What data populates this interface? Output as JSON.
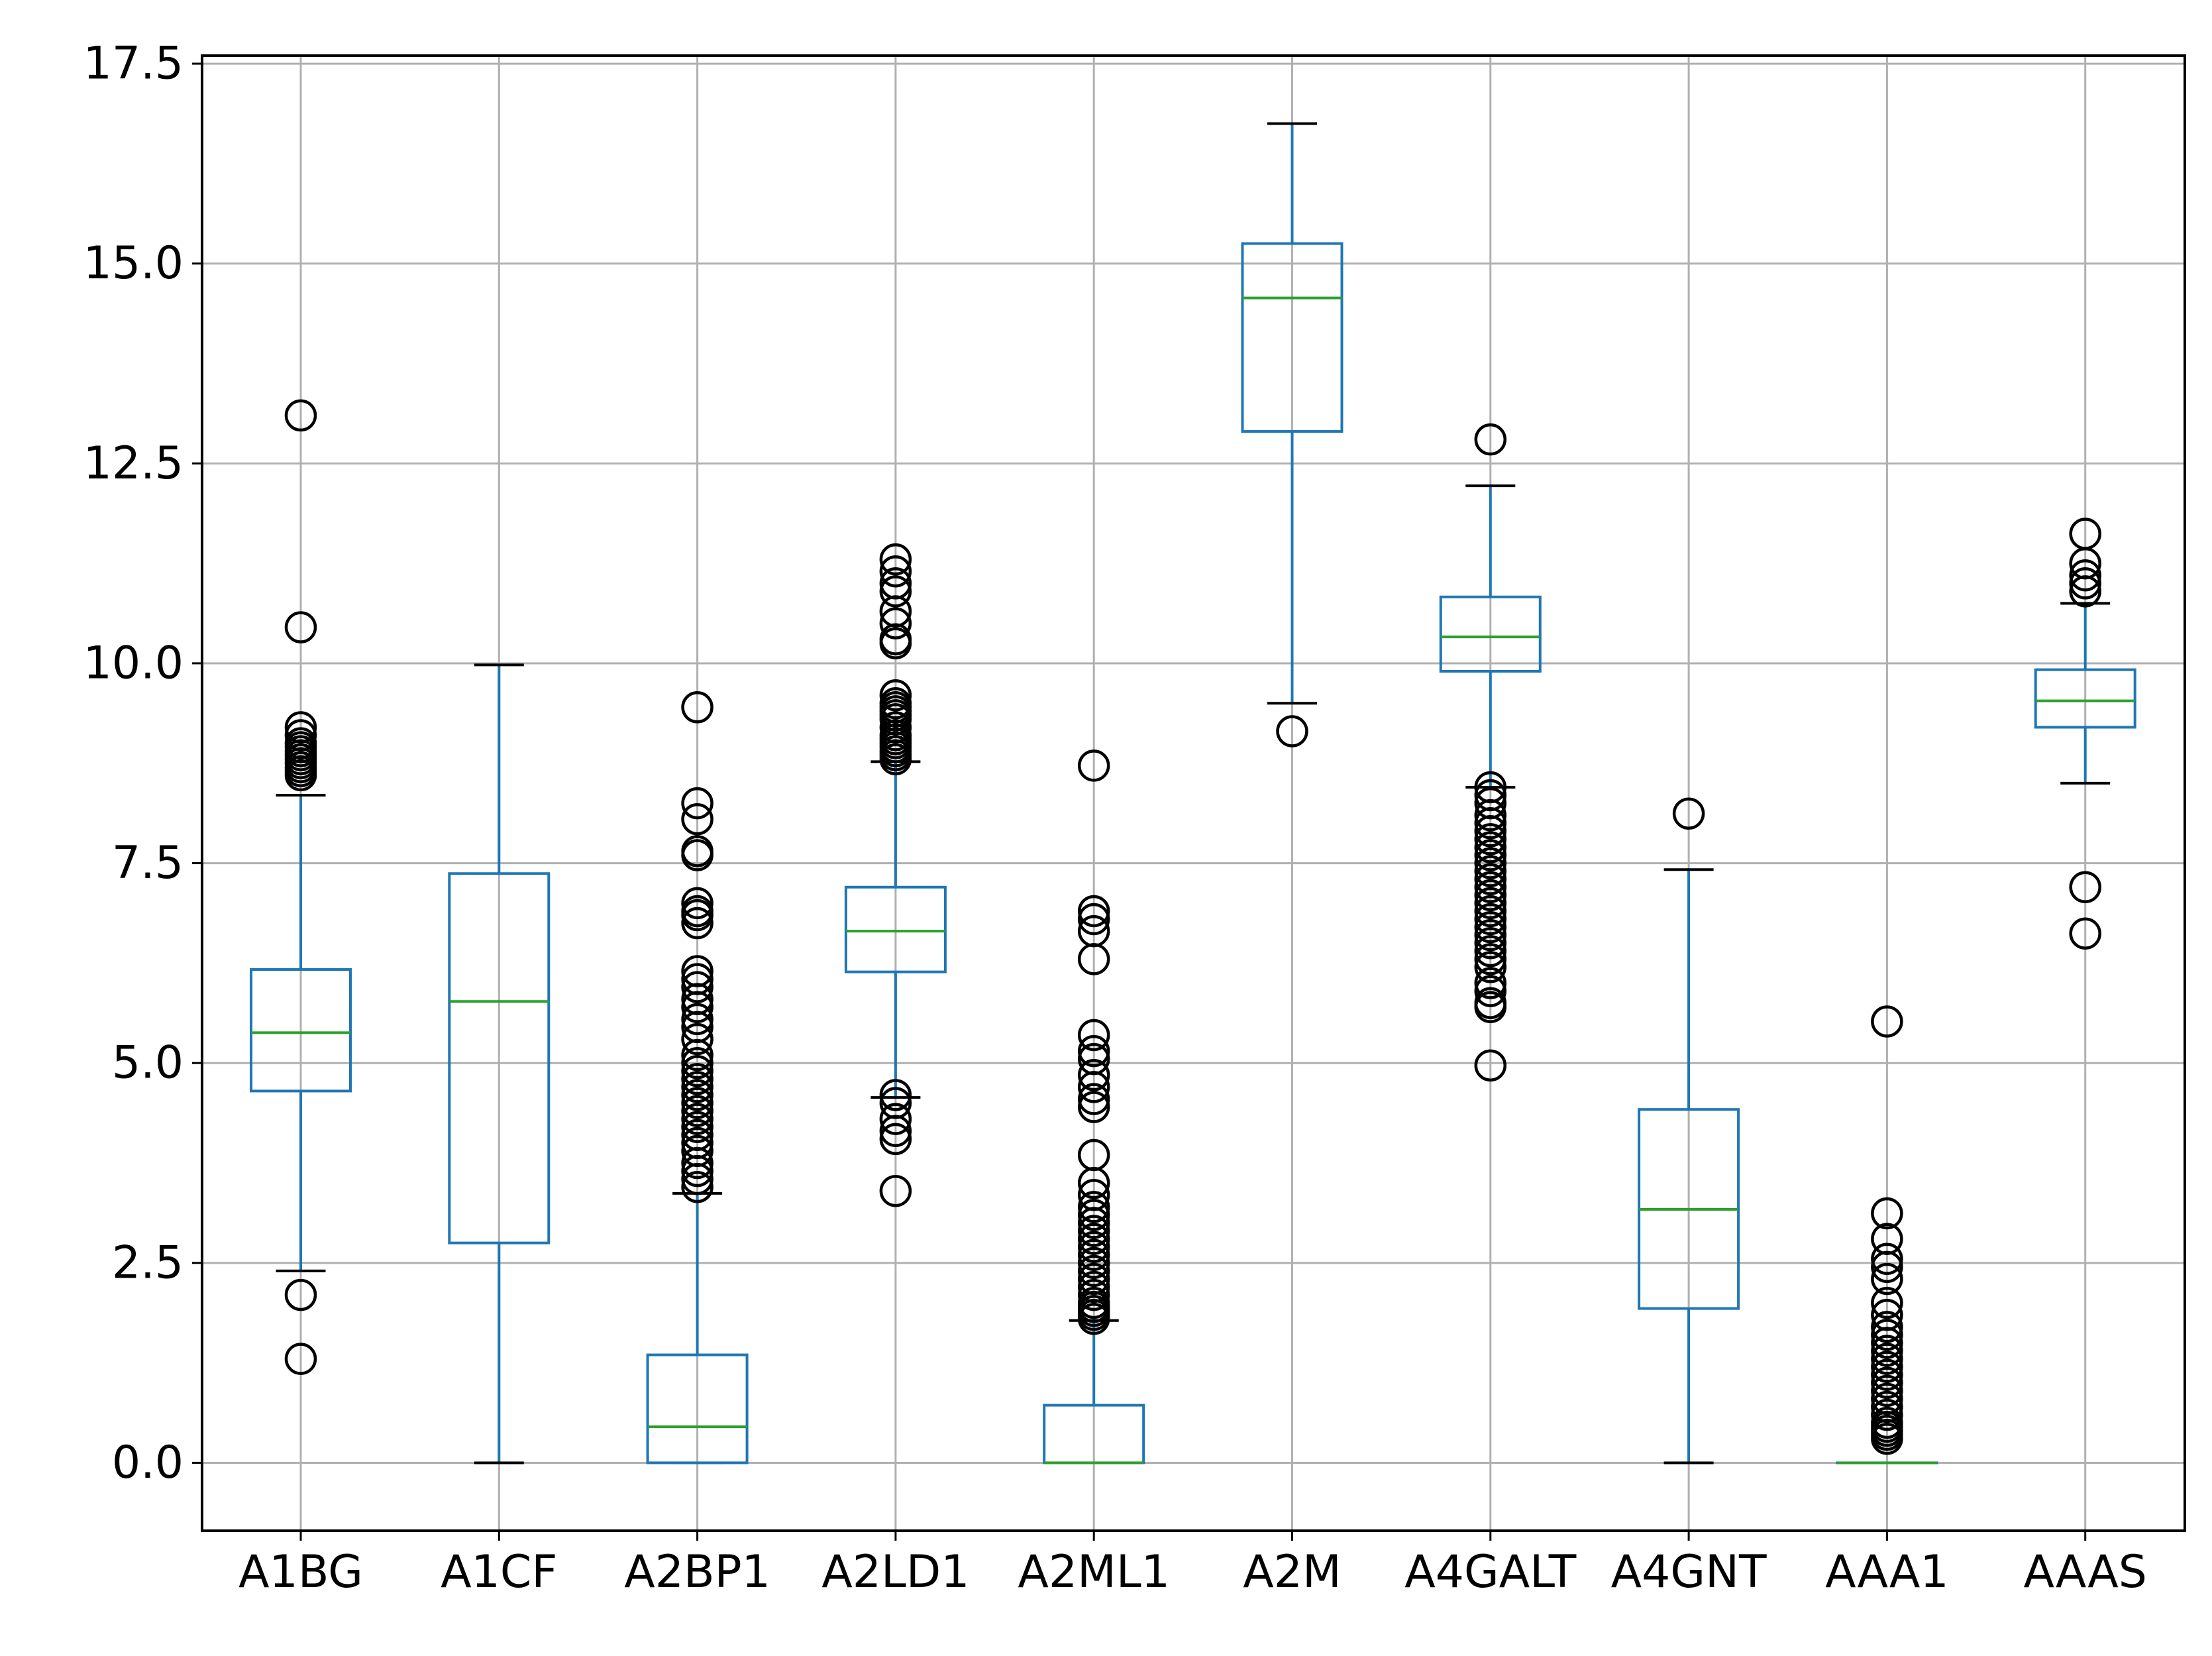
{
  "chart_data": {
    "type": "box",
    "title": "",
    "xlabel": "",
    "ylabel": "",
    "ylim": [
      -0.85,
      17.6
    ],
    "yticks": [
      "0.0",
      "2.5",
      "5.0",
      "7.5",
      "10.0",
      "12.5",
      "15.0",
      "17.5"
    ],
    "grid": true,
    "colors": {
      "box": "#1f77b4",
      "median": "#2ca02c",
      "whisker_cap": "#000000",
      "flier": "#000000",
      "grid": "#b0b0b0"
    },
    "categories": [
      "A1BG",
      "A1CF",
      "A2BP1",
      "A2LD1",
      "A2ML1",
      "A2M",
      "A4GALT",
      "A4GNT",
      "AAA1",
      "AAAS"
    ],
    "boxes": [
      {
        "label": "A1BG",
        "whislo": 2.4,
        "q1": 4.65,
        "med": 5.38,
        "q3": 6.17,
        "whishi": 8.35,
        "fliers": [
          13.1,
          10.45,
          9.2,
          9.1,
          9.0,
          8.95,
          8.9,
          8.85,
          8.8,
          8.75,
          8.7,
          8.65,
          8.6,
          2.1,
          1.3
        ]
      },
      {
        "label": "A1CF",
        "whislo": 0.0,
        "q1": 2.75,
        "med": 5.77,
        "q3": 7.37,
        "whishi": 9.98,
        "fliers": []
      },
      {
        "label": "A2BP1",
        "whislo": 0.0,
        "q1": 0.0,
        "med": 0.45,
        "q3": 1.35,
        "whishi": 3.37,
        "fliers": [
          9.45,
          8.25,
          8.05,
          7.65,
          7.6,
          7.0,
          6.9,
          6.85,
          6.75,
          6.15,
          6.05,
          5.95,
          5.8,
          5.7,
          5.55,
          5.45,
          5.3,
          5.1,
          5.0,
          4.9,
          4.8,
          4.7,
          4.6,
          4.5,
          4.4,
          4.3,
          4.2,
          4.1,
          4.0,
          3.9,
          3.75,
          3.65,
          3.55,
          3.45
        ]
      },
      {
        "label": "A2LD1",
        "whislo": 4.57,
        "q1": 6.14,
        "med": 6.65,
        "q3": 7.2,
        "whishi": 8.77,
        "fliers": [
          11.3,
          11.15,
          11.0,
          10.9,
          10.65,
          10.5,
          10.3,
          10.25,
          9.6,
          9.5,
          9.45,
          9.4,
          9.35,
          9.3,
          9.2,
          9.1,
          9.05,
          9.0,
          8.95,
          8.9,
          8.85,
          8.8,
          4.6,
          4.5,
          4.3,
          4.15,
          4.05,
          3.4
        ]
      },
      {
        "label": "A2ML1",
        "whislo": 0.0,
        "q1": 0.0,
        "med": 0.0,
        "q3": 0.72,
        "whishi": 1.78,
        "fliers": [
          8.72,
          6.9,
          6.8,
          6.65,
          6.3,
          5.35,
          5.15,
          5.05,
          4.85,
          4.7,
          4.55,
          4.45,
          3.85,
          3.5,
          3.35,
          3.2,
          3.1,
          3.0,
          2.9,
          2.8,
          2.7,
          2.6,
          2.5,
          2.4,
          2.3,
          2.2,
          2.1,
          2.0,
          1.95,
          1.9,
          1.85,
          1.8
        ]
      },
      {
        "label": "A2M",
        "whislo": 9.5,
        "q1": 12.9,
        "med": 14.57,
        "q3": 15.25,
        "whishi": 16.75,
        "fliers": [
          9.15
        ]
      },
      {
        "label": "A4GALT",
        "whislo": 8.45,
        "q1": 9.9,
        "med": 10.33,
        "q3": 10.83,
        "whishi": 12.22,
        "fliers": [
          12.8,
          8.45,
          8.35,
          8.25,
          8.1,
          8.0,
          7.9,
          7.8,
          7.7,
          7.6,
          7.5,
          7.4,
          7.3,
          7.2,
          7.1,
          7.0,
          6.9,
          6.8,
          6.7,
          6.6,
          6.5,
          6.4,
          6.3,
          6.2,
          6.0,
          5.9,
          5.75,
          5.7,
          4.97
        ]
      },
      {
        "label": "A4GNT",
        "whislo": 0.0,
        "q1": 1.93,
        "med": 3.17,
        "q3": 4.42,
        "whishi": 7.42,
        "fliers": [
          8.12
        ]
      },
      {
        "label": "AAA1",
        "whislo": 0.0,
        "q1": 0.0,
        "med": 0.0,
        "q3": 0.0,
        "whishi": 0.0,
        "fliers": [
          5.52,
          3.12,
          2.8,
          2.55,
          2.45,
          2.3,
          2.0,
          1.85,
          1.7,
          1.6,
          1.5,
          1.4,
          1.3,
          1.2,
          1.1,
          1.0,
          0.9,
          0.8,
          0.7,
          0.6,
          0.5,
          0.45,
          0.4,
          0.35,
          0.3
        ]
      },
      {
        "label": "AAAS",
        "whislo": 8.5,
        "q1": 9.2,
        "med": 9.53,
        "q3": 9.92,
        "whishi": 10.75,
        "fliers": [
          11.62,
          11.25,
          11.1,
          11.0,
          10.9,
          7.2,
          6.62
        ]
      }
    ]
  }
}
